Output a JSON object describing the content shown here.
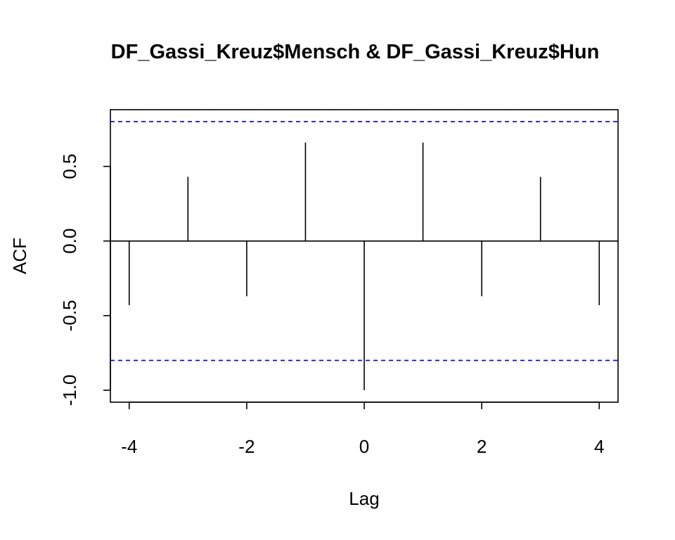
{
  "chart_data": {
    "type": "bar",
    "title": "DF_Gassi_Kreuz$Mensch & DF_Gassi_Kreuz$Hun",
    "xlabel": "Lag",
    "ylabel": "ACF",
    "xlim": [
      -4.32,
      4.32
    ],
    "ylim": [
      -1.08,
      0.88
    ],
    "x_ticks": [
      -4,
      -2,
      0,
      2,
      4
    ],
    "x_tick_labels": [
      "-4",
      "-2",
      "0",
      "2",
      "4"
    ],
    "y_ticks": [
      -1.0,
      -0.5,
      0.0,
      0.5
    ],
    "y_tick_labels": [
      "-1.0",
      "-0.5",
      "0.0",
      "0.5"
    ],
    "lags": [
      -4,
      -3,
      -2,
      -1,
      0,
      1,
      2,
      3,
      4
    ],
    "values": [
      -0.43,
      0.43,
      -0.37,
      0.66,
      -1.0,
      0.66,
      -0.37,
      0.43,
      -0.43
    ],
    "confidence_bounds": [
      0.8,
      -0.8
    ],
    "zero_line": true,
    "grid": false,
    "colors": {
      "bars": "#000000",
      "confidence": "#0000cc",
      "axes": "#000000"
    }
  }
}
